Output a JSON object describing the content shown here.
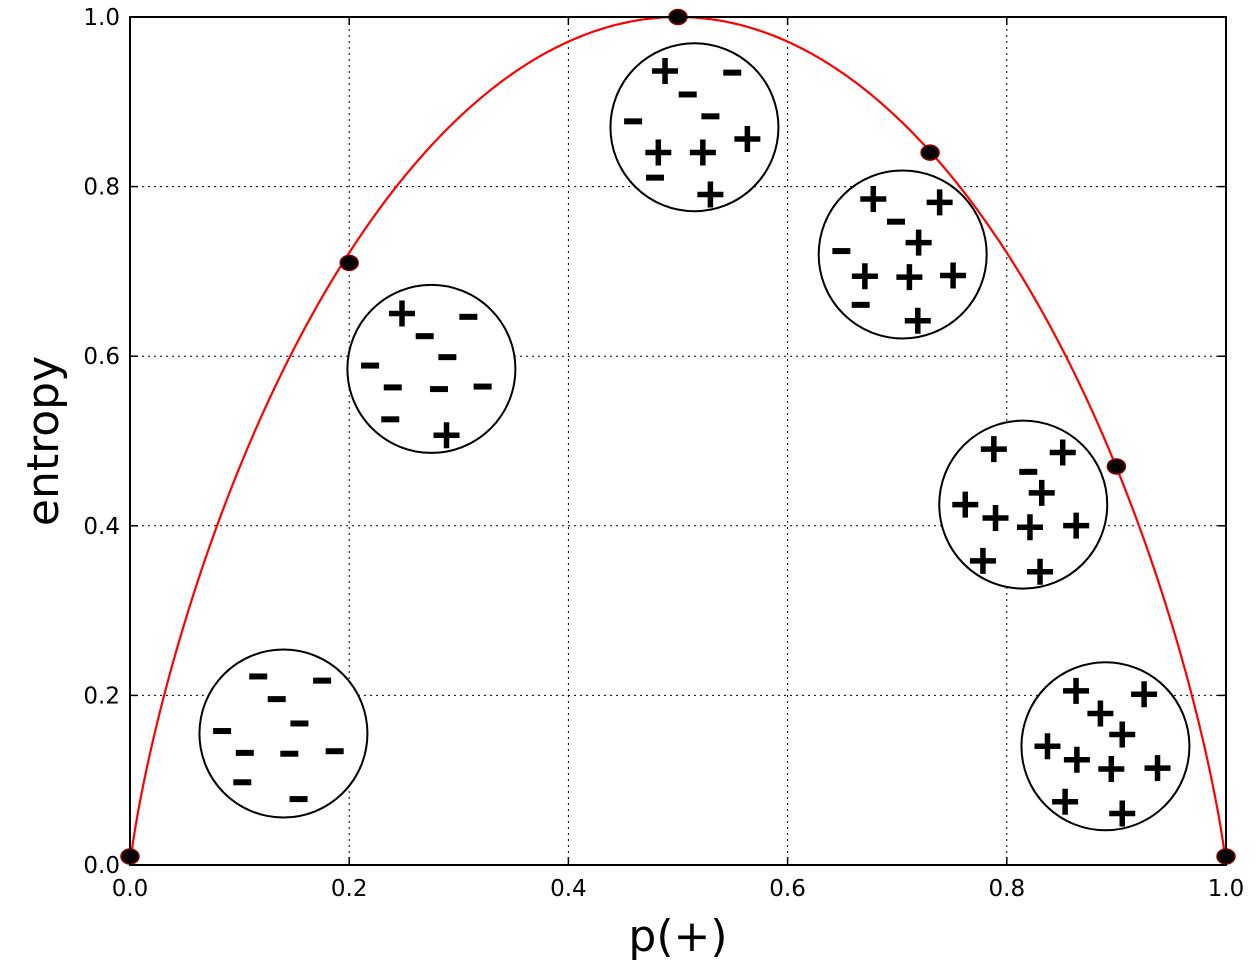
{
  "chart_data": {
    "type": "line",
    "title": "",
    "xlabel": "p(+)",
    "ylabel": "entropy",
    "xlim": [
      0.0,
      1.0
    ],
    "ylim": [
      0.0,
      1.0
    ],
    "grid": true,
    "grid_style": "dotted",
    "x_ticks": [
      "0.0",
      "0.2",
      "0.4",
      "0.6",
      "0.8",
      "1.0"
    ],
    "y_ticks": [
      "0.0",
      "0.2",
      "0.4",
      "0.6",
      "0.8",
      "1.0"
    ],
    "curve": {
      "function": "binary entropy: -p*log2(p) - (1-p)*log2(1-p)",
      "color": "#ff0000"
    },
    "points": [
      {
        "x": 0.0,
        "y": 0.01
      },
      {
        "x": 0.2,
        "y": 0.71
      },
      {
        "x": 0.5,
        "y": 1.0
      },
      {
        "x": 0.73,
        "y": 0.84
      },
      {
        "x": 0.9,
        "y": 0.47
      },
      {
        "x": 1.0,
        "y": 0.01
      }
    ],
    "point_color": "#000000",
    "annotations": [
      {
        "name": "circle-all-minus",
        "center": [
          0.14,
          0.155
        ],
        "symbols": [
          {
            "s": "-",
            "dx": -0.3,
            "dy": -0.68
          },
          {
            "s": "-",
            "dx": -0.08,
            "dy": -0.41
          },
          {
            "s": "-",
            "dx": 0.46,
            "dy": -0.63
          },
          {
            "s": "-",
            "dx": 0.19,
            "dy": -0.12
          },
          {
            "s": "-",
            "dx": -0.73,
            "dy": -0.03
          },
          {
            "s": "-",
            "dx": -0.46,
            "dy": 0.23
          },
          {
            "s": "-",
            "dx": 0.07,
            "dy": 0.24
          },
          {
            "s": "-",
            "dx": 0.61,
            "dy": 0.21
          },
          {
            "s": "-",
            "dx": -0.49,
            "dy": 0.58
          },
          {
            "s": "-",
            "dx": 0.18,
            "dy": 0.78
          }
        ]
      },
      {
        "name": "circle-mostly-minus",
        "center": [
          0.275,
          0.585
        ],
        "symbols": [
          {
            "s": "+",
            "dx": -0.35,
            "dy": -0.66
          },
          {
            "s": "-",
            "dx": -0.08,
            "dy": -0.39
          },
          {
            "s": "-",
            "dx": 0.44,
            "dy": -0.62
          },
          {
            "s": "-",
            "dx": 0.19,
            "dy": -0.14
          },
          {
            "s": "-",
            "dx": -0.73,
            "dy": -0.04
          },
          {
            "s": "-",
            "dx": -0.46,
            "dy": 0.22
          },
          {
            "s": "-",
            "dx": 0.09,
            "dy": 0.24
          },
          {
            "s": "-",
            "dx": 0.61,
            "dy": 0.21
          },
          {
            "s": "-",
            "dx": -0.49,
            "dy": 0.6
          },
          {
            "s": "+",
            "dx": 0.18,
            "dy": 0.79
          }
        ]
      },
      {
        "name": "circle-balanced",
        "center": [
          0.515,
          0.87
        ],
        "symbols": [
          {
            "s": "+",
            "dx": -0.35,
            "dy": -0.67
          },
          {
            "s": "-",
            "dx": -0.08,
            "dy": -0.39
          },
          {
            "s": "-",
            "dx": 0.45,
            "dy": -0.65
          },
          {
            "s": "-",
            "dx": 0.19,
            "dy": -0.13
          },
          {
            "s": "+",
            "dx": 0.63,
            "dy": 0.14
          },
          {
            "s": "-",
            "dx": -0.73,
            "dy": -0.07
          },
          {
            "s": "+",
            "dx": -0.43,
            "dy": 0.3
          },
          {
            "s": "+",
            "dx": 0.1,
            "dy": 0.3
          },
          {
            "s": "-",
            "dx": -0.47,
            "dy": 0.6
          },
          {
            "s": "+",
            "dx": 0.19,
            "dy": 0.8
          }
        ]
      },
      {
        "name": "circle-mostly-plus-1",
        "center": [
          0.705,
          0.72
        ],
        "symbols": [
          {
            "s": "+",
            "dx": -0.35,
            "dy": -0.66
          },
          {
            "s": "-",
            "dx": -0.08,
            "dy": -0.39
          },
          {
            "s": "+",
            "dx": 0.44,
            "dy": -0.62
          },
          {
            "s": "+",
            "dx": 0.19,
            "dy": -0.14
          },
          {
            "s": "-",
            "dx": -0.73,
            "dy": -0.04
          },
          {
            "s": "+",
            "dx": -0.45,
            "dy": 0.26
          },
          {
            "s": "+",
            "dx": 0.08,
            "dy": 0.27
          },
          {
            "s": "+",
            "dx": 0.6,
            "dy": 0.25
          },
          {
            "s": "-",
            "dx": -0.5,
            "dy": 0.6
          },
          {
            "s": "+",
            "dx": 0.18,
            "dy": 0.79
          }
        ]
      },
      {
        "name": "circle-mostly-plus-2",
        "center": [
          0.815,
          0.425
        ],
        "symbols": [
          {
            "s": "+",
            "dx": -0.35,
            "dy": -0.66
          },
          {
            "s": "-",
            "dx": 0.06,
            "dy": -0.39
          },
          {
            "s": "+",
            "dx": 0.47,
            "dy": -0.62
          },
          {
            "s": "+",
            "dx": 0.22,
            "dy": -0.14
          },
          {
            "s": "+",
            "dx": -0.69,
            "dy": 0.0
          },
          {
            "s": "+",
            "dx": -0.33,
            "dy": 0.16
          },
          {
            "s": "+",
            "dx": 0.08,
            "dy": 0.27
          },
          {
            "s": "+",
            "dx": 0.63,
            "dy": 0.25
          },
          {
            "s": "+",
            "dx": -0.48,
            "dy": 0.67
          },
          {
            "s": "+",
            "dx": 0.2,
            "dy": 0.8
          }
        ]
      },
      {
        "name": "circle-all-plus",
        "center": [
          0.89,
          0.14
        ],
        "symbols": [
          {
            "s": "+",
            "dx": -0.35,
            "dy": -0.66
          },
          {
            "s": "+",
            "dx": 0.46,
            "dy": -0.62
          },
          {
            "s": "+",
            "dx": -0.06,
            "dy": -0.39
          },
          {
            "s": "+",
            "dx": 0.2,
            "dy": -0.14
          },
          {
            "s": "+",
            "dx": -0.69,
            "dy": 0.0
          },
          {
            "s": "+",
            "dx": -0.34,
            "dy": 0.16
          },
          {
            "s": "+",
            "dx": 0.07,
            "dy": 0.27
          },
          {
            "s": "+",
            "dx": 0.62,
            "dy": 0.26
          },
          {
            "s": "+",
            "dx": -0.48,
            "dy": 0.66
          },
          {
            "s": "+",
            "dx": 0.2,
            "dy": 0.8
          }
        ]
      }
    ]
  }
}
